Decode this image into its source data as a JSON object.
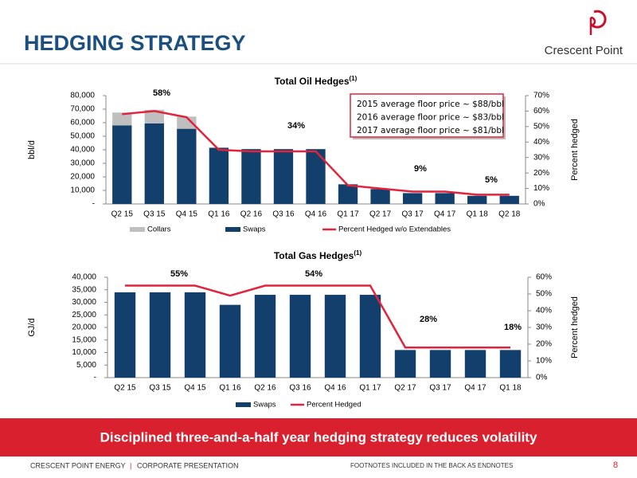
{
  "header": {
    "title": "HEDGING STRATEGY",
    "logo": "Crescent Point"
  },
  "banner": "Disciplined three-and-a-half year hedging strategy reduces volatility",
  "footer": {
    "company": "CRESCENT POINT ENERGY",
    "separator": "|",
    "section": "CORPORATE PRESENTATION",
    "note": "FOOTNOTES INCLUDED IN THE BACK AS ENDNOTES",
    "page": "8"
  },
  "chart_data": [
    {
      "type": "bar",
      "title": "Total Oil Hedges",
      "title_note": "(1)",
      "y_label": "bbl/d",
      "y2_label": "Percent hedged",
      "categories": [
        "Q2 15",
        "Q3 15",
        "Q4 15",
        "Q1 16",
        "Q2 16",
        "Q3 16",
        "Q4 16",
        "Q1 17",
        "Q2 17",
        "Q3 17",
        "Q4 17",
        "Q1 18",
        "Q2 18"
      ],
      "series": [
        {
          "name": "Collars",
          "type": "bar",
          "color": "#bfbfbf",
          "values": [
            9500,
            10000,
            9000,
            0,
            0,
            0,
            0,
            0,
            0,
            0,
            0,
            0,
            0
          ]
        },
        {
          "name": "Swaps",
          "type": "bar",
          "color": "#123f6b",
          "values": [
            58000,
            59500,
            55500,
            41500,
            40500,
            40500,
            40500,
            14500,
            11000,
            8000,
            8000,
            6000,
            6000
          ]
        },
        {
          "name": "Percent Hedged w/o Extendables",
          "type": "line",
          "axis": "y2",
          "color": "#e2233b",
          "values": [
            58,
            60,
            56,
            35,
            34,
            34,
            34,
            12,
            10,
            8,
            8,
            6,
            6
          ]
        }
      ],
      "stacked": true,
      "ylim": [
        0,
        80000
      ],
      "yticks": [
        {
          "value": 0,
          "label": "-"
        },
        {
          "value": 10000,
          "label": "10,000"
        },
        {
          "value": 20000,
          "label": "20,000"
        },
        {
          "value": 30000,
          "label": "30,000"
        },
        {
          "value": 40000,
          "label": "40,000"
        },
        {
          "value": 50000,
          "label": "50,000"
        },
        {
          "value": 60000,
          "label": "60,000"
        },
        {
          "value": 70000,
          "label": "70,000"
        },
        {
          "value": 80000,
          "label": "80,000"
        }
      ],
      "y2lim": [
        0,
        70
      ],
      "y2ticks": [
        {
          "value": 0,
          "label": "0%"
        },
        {
          "value": 10,
          "label": "10%"
        },
        {
          "value": 20,
          "label": "20%"
        },
        {
          "value": 30,
          "label": "30%"
        },
        {
          "value": 40,
          "label": "40%"
        },
        {
          "value": 50,
          "label": "50%"
        },
        {
          "value": 60,
          "label": "60%"
        },
        {
          "value": 70,
          "label": "70%"
        }
      ],
      "annotations": [
        "58%",
        "34%",
        "9%",
        "5%"
      ],
      "note_box": [
        "2015 average floor price ~ $88/bbl",
        "2016 average floor price ~ $83/bbl",
        "2017 average floor price ~ $81/bbl"
      ]
    },
    {
      "type": "bar",
      "title": "Total Gas Hedges",
      "title_note": "(1)",
      "y_label": "GJ/d",
      "y2_label": "Percent hedged",
      "categories": [
        "Q2 15",
        "Q3 15",
        "Q4 15",
        "Q1 16",
        "Q2 16",
        "Q3 16",
        "Q4 16",
        "Q1 17",
        "Q2 17",
        "Q3 17",
        "Q4 17",
        "Q1 18"
      ],
      "series": [
        {
          "name": "Swaps",
          "type": "bar",
          "color": "#123f6b",
          "values": [
            34000,
            34000,
            34000,
            29000,
            33000,
            33000,
            33000,
            33000,
            11000,
            11000,
            11000,
            11000
          ]
        },
        {
          "name": "Percent Hedged",
          "type": "line",
          "axis": "y2",
          "color": "#e2233b",
          "values": [
            55,
            55,
            55,
            49,
            55,
            55,
            55,
            55,
            18,
            18,
            18,
            18
          ]
        }
      ],
      "ylim": [
        0,
        40000
      ],
      "yticks": [
        {
          "value": 0,
          "label": "-"
        },
        {
          "value": 5000,
          "label": "5,000"
        },
        {
          "value": 10000,
          "label": "10,000"
        },
        {
          "value": 15000,
          "label": "15,000"
        },
        {
          "value": 20000,
          "label": "20,000"
        },
        {
          "value": 25000,
          "label": "25,000"
        },
        {
          "value": 30000,
          "label": "30,000"
        },
        {
          "value": 35000,
          "label": "35,000"
        },
        {
          "value": 40000,
          "label": "40,000"
        }
      ],
      "y2lim": [
        0,
        60
      ],
      "y2ticks": [
        {
          "value": 0,
          "label": "0%"
        },
        {
          "value": 10,
          "label": "10%"
        },
        {
          "value": 20,
          "label": "20%"
        },
        {
          "value": 30,
          "label": "30%"
        },
        {
          "value": 40,
          "label": "40%"
        },
        {
          "value": 50,
          "label": "50%"
        },
        {
          "value": 60,
          "label": "60%"
        }
      ],
      "annotations": [
        "55%",
        "54%",
        "28%",
        "18%"
      ]
    }
  ]
}
